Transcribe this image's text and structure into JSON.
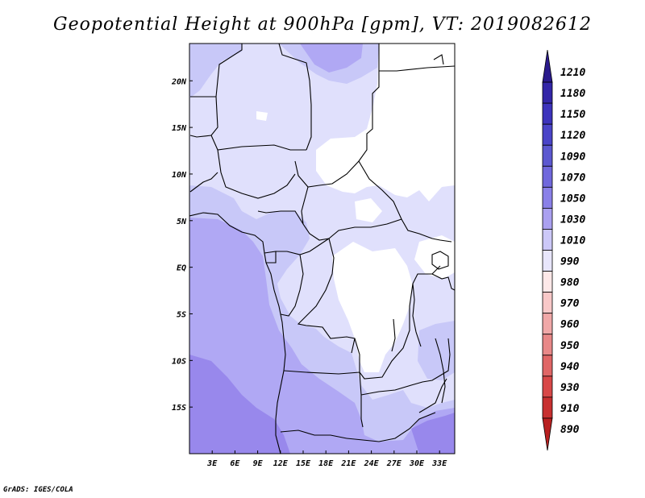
{
  "title": "Geopotential Height at 900hPa [gpm], VT: 2019082612",
  "credit": "GrADS: IGES/COLA",
  "map": {
    "lon_labels": [
      "3E",
      "6E",
      "9E",
      "12E",
      "15E",
      "18E",
      "21E",
      "24E",
      "27E",
      "30E",
      "33E"
    ],
    "lat_labels": [
      "20N",
      "15N",
      "10N",
      "5N",
      "EQ",
      "5S",
      "10S",
      "15S"
    ],
    "lon_range": [
      0,
      35
    ],
    "lat_range": [
      -20,
      24
    ],
    "palette_field": {
      "white": "#ffffff",
      "c1010": "#e0e0fc",
      "c1030": "#c8c8f8",
      "c1050": "#b0a8f4",
      "c1070": "#9888ec"
    }
  },
  "colorbar": {
    "levels": [
      "1210",
      "1180",
      "1150",
      "1120",
      "1090",
      "1070",
      "1050",
      "1030",
      "1010",
      "990",
      "980",
      "970",
      "960",
      "950",
      "940",
      "930",
      "910",
      "890"
    ],
    "colors": [
      "#2a1a8c",
      "#3326a8",
      "#3d33bc",
      "#4a44c8",
      "#5c58d0",
      "#7068dc",
      "#8a80e8",
      "#aaa0f0",
      "#ccc8f8",
      "#e8e6fc",
      "#fde8e8",
      "#f8c8c8",
      "#f0a8a8",
      "#e88888",
      "#e06666",
      "#d84848",
      "#c83030",
      "#b82020"
    ]
  }
}
